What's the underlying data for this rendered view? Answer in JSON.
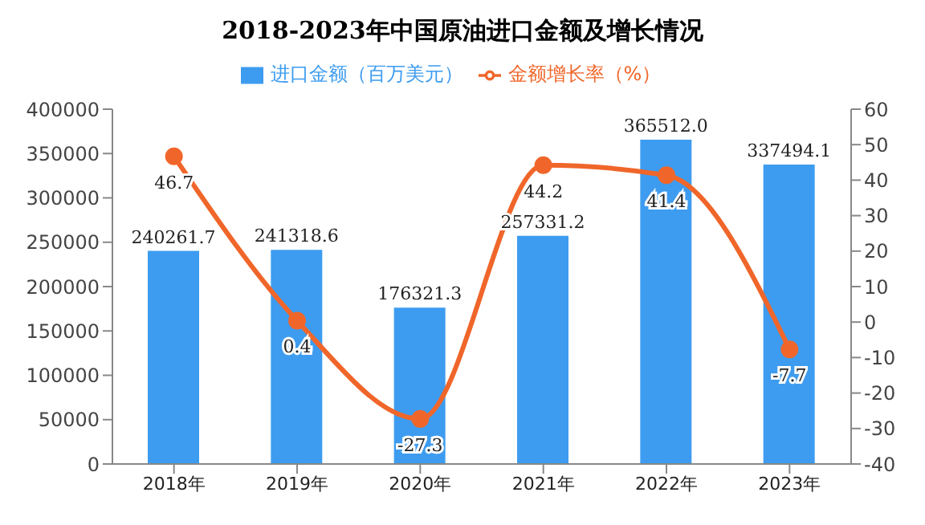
{
  "chart_data": {
    "type": "bar",
    "title": "2018-2023年中国原油进口金额及增长情况",
    "categories": [
      "2018年",
      "2019年",
      "2020年",
      "2021年",
      "2022年",
      "2023年"
    ],
    "series": [
      {
        "name": "进口金额（百万美元）",
        "color": "#3d9cf0",
        "values": [
          240261.7,
          241318.6,
          176321.3,
          257331.2,
          365512.0,
          337494.1
        ],
        "value_labels": [
          "240261.7",
          "241318.6",
          "176321.3",
          "257331.2",
          "365512.0",
          "337494.1"
        ]
      },
      {
        "name": "金额增长率（%）",
        "type": "line",
        "axis": "y2",
        "color": "#f0662a",
        "marker": "circle",
        "values": [
          46.7,
          0.4,
          -27.3,
          44.2,
          41.4,
          -7.7
        ],
        "value_labels": [
          "46.7",
          "0.4",
          "-27.3",
          "44.2",
          "41.4",
          "-7.7"
        ]
      }
    ],
    "ylim": [
      0,
      400000
    ],
    "yticks": [
      0,
      50000,
      100000,
      150000,
      200000,
      250000,
      300000,
      350000,
      400000
    ],
    "y2lim": [
      -40,
      60
    ],
    "y2ticks": [
      -40,
      -30,
      -20,
      -10,
      0,
      10,
      20,
      30,
      40,
      50,
      60
    ],
    "legend": "top",
    "grid": false
  }
}
